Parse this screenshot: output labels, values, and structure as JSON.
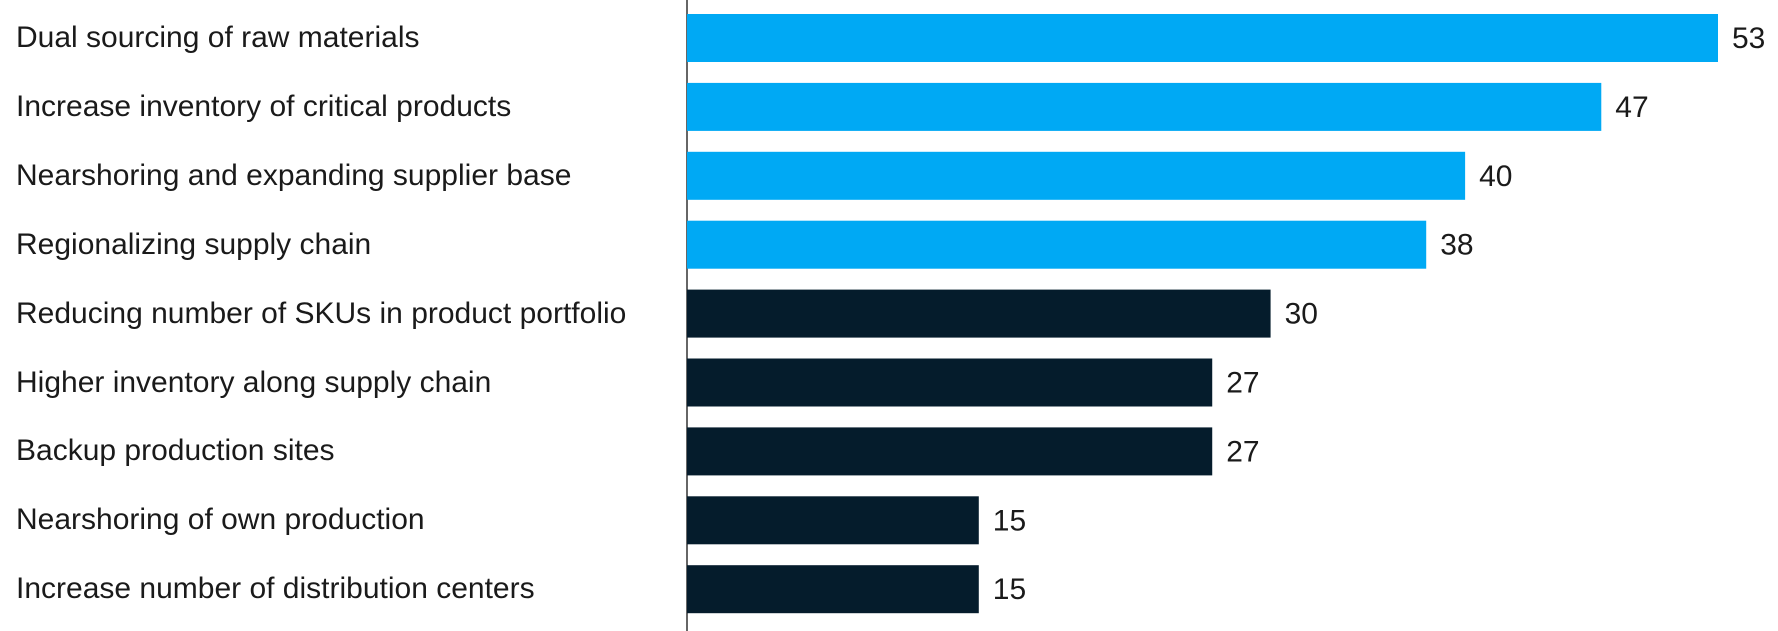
{
  "chart_data": {
    "type": "bar",
    "orientation": "horizontal",
    "categories": [
      "Dual sourcing of raw materials",
      "Increase inventory of critical products",
      "Nearshoring and expanding supplier base",
      "Regionalizing supply chain",
      "Reducing number of SKUs in product portfolio",
      "Higher inventory along supply chain",
      "Backup production sites",
      "Nearshoring of own production",
      "Increase number of distribution centers"
    ],
    "values": [
      53,
      47,
      40,
      38,
      30,
      27,
      27,
      15,
      15
    ],
    "value_labels": [
      "53",
      "47",
      "40",
      "38",
      "30",
      "27",
      "27",
      "15",
      "15"
    ],
    "highlighted_count": 4,
    "title": "",
    "xlabel": "",
    "ylabel": "",
    "xlim": [
      0,
      53
    ],
    "grid": false,
    "legend": "none"
  },
  "colors": {
    "highlight": "#00A9F4",
    "default": "#051C2C",
    "axis_line": "#333333",
    "text": "#1a1a1a"
  }
}
